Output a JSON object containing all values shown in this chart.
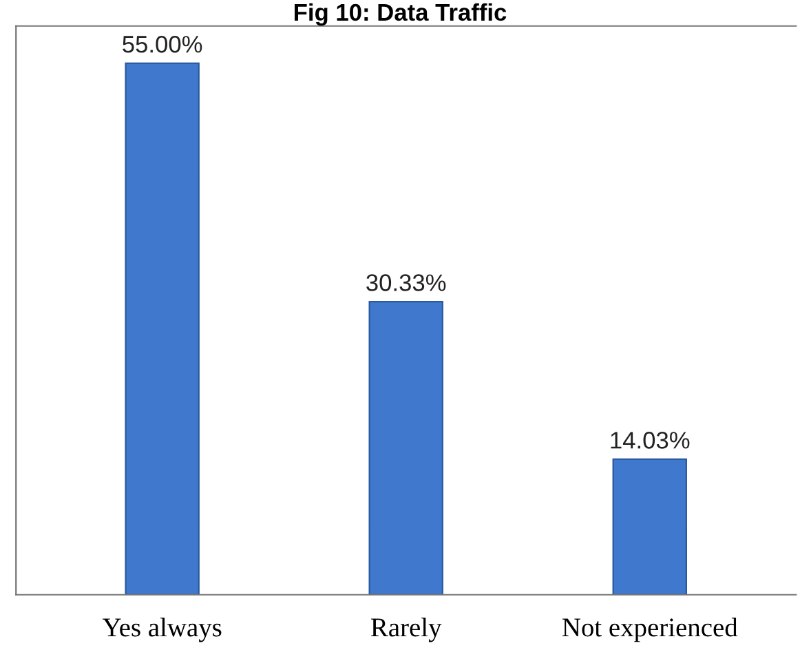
{
  "chart_data": {
    "type": "bar",
    "title": "Fig 10: Data Traffic",
    "categories": [
      "Yes always",
      "Rarely",
      "Not experienced"
    ],
    "values": [
      55.0,
      30.33,
      14.03
    ],
    "value_labels": [
      "55.00%",
      "30.33%",
      "14.03%"
    ],
    "color": "#3f78cc",
    "grid": false,
    "legend": false
  }
}
